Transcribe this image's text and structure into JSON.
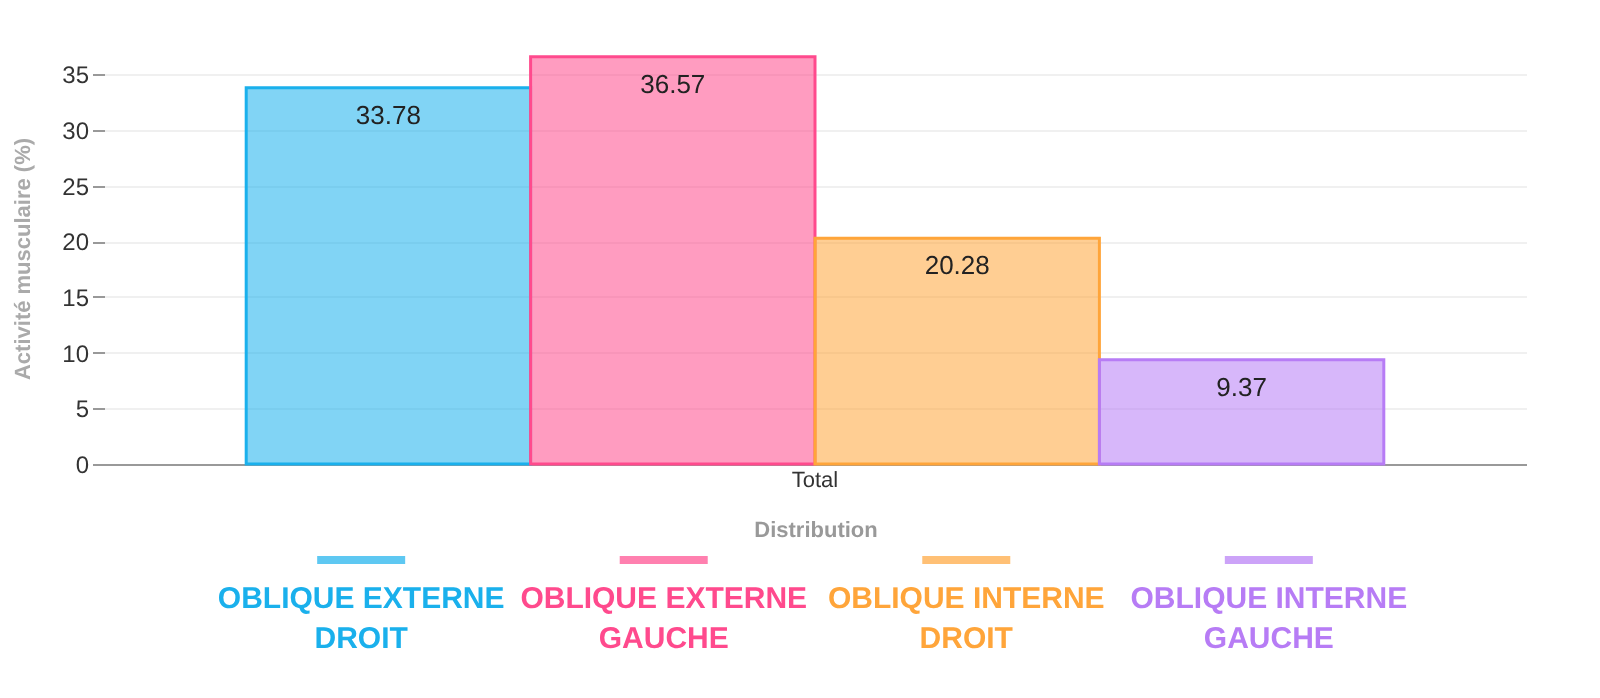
{
  "chart_data": {
    "type": "bar",
    "categories": [
      "Total"
    ],
    "xlabel": "Distribution",
    "ylabel": "Activité musculaire (%)",
    "series": [
      {
        "name": "OBLIQUE EXTERNE DROIT",
        "color": "#1ab0ec",
        "values": [
          33.78
        ]
      },
      {
        "name": "OBLIQUE EXTERNE GAUCHE",
        "color": "#ff4a8d",
        "values": [
          36.57
        ]
      },
      {
        "name": "OBLIQUE INTERNE DROIT",
        "color": "#ffa53a",
        "values": [
          20.28
        ]
      },
      {
        "name": "OBLIQUE INTERNE GAUCHE",
        "color": "#b77cf5",
        "values": [
          9.37
        ]
      }
    ],
    "ylim": [
      0,
      37
    ],
    "yticks": [
      0,
      5,
      10,
      15,
      20,
      25,
      30,
      35
    ],
    "grid": "y",
    "data_labels": true,
    "legend": "bottom"
  }
}
